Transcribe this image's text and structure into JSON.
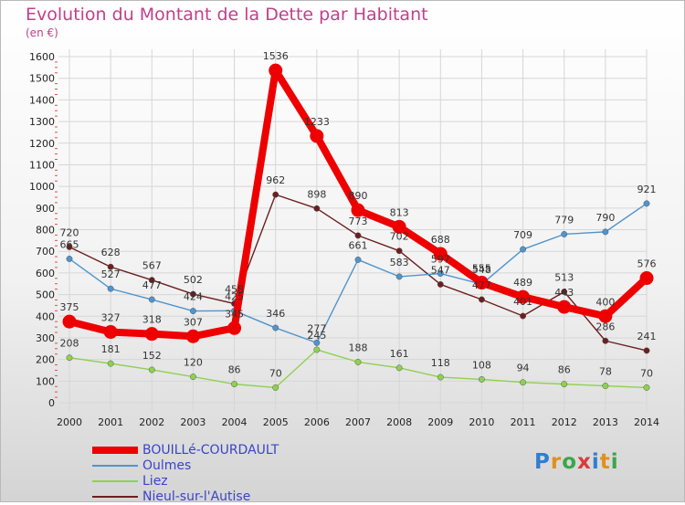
{
  "chart_data": {
    "type": "line",
    "title": "Evolution du Montant de la Dette par Habitant",
    "subtitle": "(en €)",
    "x": [
      "2000",
      "2001",
      "2002",
      "2003",
      "2004",
      "2005",
      "2006",
      "2007",
      "2008",
      "2009",
      "2010",
      "2011",
      "2012",
      "2013",
      "2014"
    ],
    "ylim": [
      0,
      1600
    ],
    "yticks": [
      0,
      100,
      200,
      300,
      400,
      500,
      600,
      700,
      800,
      900,
      1000,
      1100,
      1200,
      1300,
      1400,
      1500,
      1600
    ],
    "grid": true,
    "legend_position": "bottom-left",
    "series": [
      {
        "name": "BOUILLé-COURDAULT",
        "color": "#ee0000",
        "values": [
          375,
          327,
          318,
          307,
          345,
          1536,
          1233,
          890,
          813,
          688,
          555,
          489,
          443,
          400,
          576
        ]
      },
      {
        "name": "Oulmes",
        "color": "#4f94cd",
        "values": [
          665,
          527,
          477,
          424,
          425,
          346,
          277,
          661,
          583,
          597,
          548,
          709,
          779,
          790,
          921
        ]
      },
      {
        "name": "Liez",
        "color": "#8fd14f",
        "values": [
          208,
          181,
          152,
          120,
          86,
          70,
          245,
          188,
          161,
          118,
          108,
          94,
          86,
          78,
          70
        ]
      },
      {
        "name": "Nieul-sur-l'Autise",
        "color": "#6b1f1f",
        "values": [
          720,
          628,
          567,
          502,
          458,
          962,
          898,
          773,
          702,
          547,
          477,
          401,
          513,
          286,
          241
        ]
      }
    ]
  },
  "branding": {
    "logo_text": "Proxiti"
  }
}
